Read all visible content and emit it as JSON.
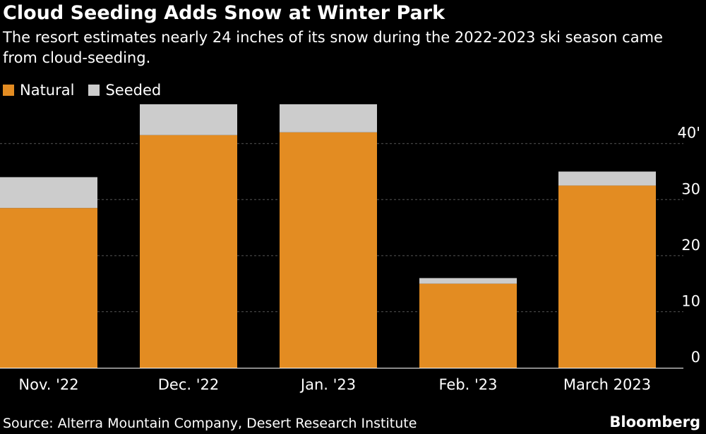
{
  "title": "Cloud Seeding Adds Snow at Winter Park",
  "subtitle": "The resort estimates nearly 24 inches of its snow during the 2022-2023 ski season came from cloud-seeding.",
  "source": "Source: Alterra Mountain Company, Desert Research Institute",
  "brand": "Bloomberg",
  "colors": {
    "background": "#000000",
    "natural": "#E38C22",
    "seeded": "#CCCCCC",
    "gridline": "#555555",
    "text": "#FFFFFF"
  },
  "chart_data": {
    "type": "bar",
    "stacked": true,
    "categories": [
      "Nov. '22",
      "Dec. '22",
      "Jan. '23",
      "Feb. '23",
      "March 2023"
    ],
    "series": [
      {
        "name": "Natural",
        "color": "#E38C22",
        "values": [
          28.5,
          41.5,
          42,
          15,
          32.5
        ]
      },
      {
        "name": "Seeded",
        "color": "#CCCCCC",
        "values": [
          5.5,
          5.5,
          5,
          1,
          2.5
        ]
      }
    ],
    "y_ticks": [
      {
        "value": 0,
        "label": "0"
      },
      {
        "value": 10,
        "label": "10"
      },
      {
        "value": 20,
        "label": "20"
      },
      {
        "value": 30,
        "label": "30"
      },
      {
        "value": 40,
        "label": "40'"
      }
    ],
    "ylim": [
      0,
      47
    ],
    "grid": true,
    "legend_position": "top-left",
    "y_axis_position": "right"
  }
}
